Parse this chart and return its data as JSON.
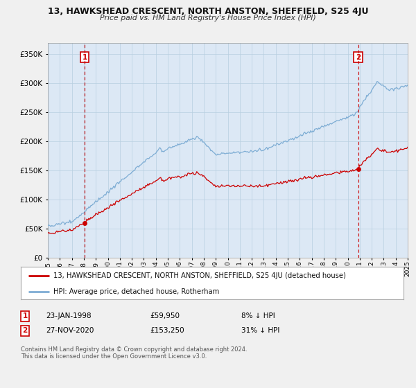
{
  "title": "13, HAWKSHEAD CRESCENT, NORTH ANSTON, SHEFFIELD, S25 4JU",
  "subtitle": "Price paid vs. HM Land Registry's House Price Index (HPI)",
  "sale1_date": "23-JAN-1998",
  "sale1_price": 59950,
  "sale1_hpi": "8% ↓ HPI",
  "sale2_date": "27-NOV-2020",
  "sale2_price": 153250,
  "sale2_hpi": "31% ↓ HPI",
  "legend_line1": "13, HAWKSHEAD CRESCENT, NORTH ANSTON, SHEFFIELD, S25 4JU (detached house)",
  "legend_line2": "HPI: Average price, detached house, Rotherham",
  "footer": "Contains HM Land Registry data © Crown copyright and database right 2024.\nThis data is licensed under the Open Government Licence v3.0.",
  "sale_color": "#cc0000",
  "hpi_color": "#7eadd4",
  "background_color": "#f0f0f0",
  "plot_bg": "#dce8f5",
  "grid_color": "#b8cfe0",
  "ylim": [
    0,
    370000
  ],
  "yticks": [
    0,
    50000,
    100000,
    150000,
    200000,
    250000,
    300000,
    350000
  ],
  "sale1_year": 1998.06,
  "sale2_year": 2020.88
}
